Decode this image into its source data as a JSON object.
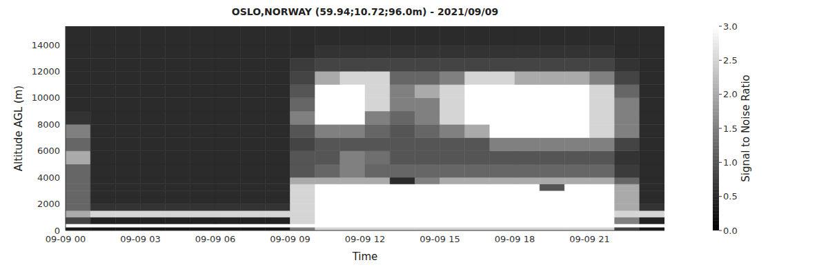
{
  "chart_data": {
    "type": "heatmap",
    "title": "OSLO,NORWAY (59.94;10.72;96.0m) - 2021/09/09",
    "x_label": "Time",
    "y_label": "Altitude AGL (m)",
    "x_bins": [
      0,
      1,
      2,
      3,
      4,
      5,
      6,
      7,
      8,
      9,
      10,
      11,
      12,
      13,
      14,
      15,
      16,
      17,
      18,
      19,
      20,
      21,
      22,
      23,
      24
    ],
    "y_bins": [
      0,
      250,
      500,
      1000,
      1500,
      2000,
      2500,
      3000,
      3500,
      4000,
      5000,
      6000,
      7000,
      8000,
      9000,
      10000,
      11000,
      12000,
      13000,
      14000,
      15400
    ],
    "cells": [
      [
        0.3,
        0.3,
        0.3,
        0.3,
        0.3,
        0.3,
        0.3,
        0.3,
        0.3,
        1.5,
        2.5,
        2.5,
        2.5,
        2.5,
        2.5,
        2.5,
        2.5,
        2.5,
        2.5,
        2.5,
        2.5,
        2.5,
        0.8,
        0.3
      ],
      [
        3,
        3,
        3,
        3,
        3,
        3,
        3,
        3,
        3,
        3,
        3,
        3,
        3,
        3,
        3,
        3,
        3,
        3,
        3,
        3,
        3,
        3,
        3,
        3
      ],
      [
        0.8,
        0.4,
        0.4,
        0.4,
        0.4,
        0.4,
        0.4,
        0.4,
        0.4,
        2.5,
        3,
        3,
        3,
        3,
        3,
        3,
        3,
        3,
        3,
        3,
        3,
        3,
        1.5,
        0.4
      ],
      [
        2,
        2.5,
        2.5,
        2.5,
        2.5,
        2.5,
        2.5,
        2.5,
        2.5,
        2.5,
        3,
        3,
        3,
        3,
        3,
        3,
        3,
        3,
        3,
        3,
        3,
        3,
        2.5,
        2.5
      ],
      [
        1.2,
        0.6,
        0.6,
        0.6,
        0.6,
        0.6,
        0.6,
        0.6,
        0.6,
        2.5,
        3,
        3,
        3,
        3,
        3,
        3,
        3,
        3,
        3,
        3,
        3,
        3,
        2,
        0.6
      ],
      [
        1.2,
        0.5,
        0.5,
        0.5,
        0.5,
        0.5,
        0.5,
        0.5,
        0.5,
        2.5,
        3,
        3,
        3,
        3,
        3,
        3,
        3,
        3,
        3,
        3,
        3,
        3,
        2,
        0.5
      ],
      [
        1.2,
        0.5,
        0.5,
        0.5,
        0.5,
        0.5,
        0.5,
        0.5,
        0.5,
        2.5,
        3,
        3,
        3,
        3,
        3,
        3,
        3,
        3,
        3,
        3,
        3,
        3,
        2,
        0.5
      ],
      [
        1.2,
        0.5,
        0.5,
        0.5,
        0.5,
        0.5,
        0.5,
        0.5,
        0.5,
        2.5,
        3,
        3,
        3,
        3,
        3,
        3,
        3,
        3,
        3,
        1,
        3,
        3,
        2,
        0.5
      ],
      [
        1.2,
        0.5,
        0.5,
        0.5,
        0.5,
        0.5,
        0.5,
        0.5,
        0.5,
        2,
        2,
        2,
        2,
        0.5,
        1.5,
        2,
        2,
        2,
        2,
        2,
        2,
        2,
        1.2,
        0.5
      ],
      [
        1.2,
        0.5,
        0.5,
        0.5,
        0.5,
        0.5,
        0.5,
        0.5,
        0.5,
        1,
        1.2,
        1.5,
        1.2,
        1.2,
        1.2,
        1.2,
        1.2,
        1.2,
        1.2,
        1.2,
        1.2,
        1.2,
        0.7,
        0.5
      ],
      [
        2,
        0.5,
        0.5,
        0.5,
        0.5,
        0.5,
        0.5,
        0.5,
        0.5,
        1,
        1,
        1.5,
        1.3,
        1,
        1,
        1,
        1,
        1,
        1,
        1,
        1,
        1,
        0.6,
        0.5
      ],
      [
        1.2,
        0.5,
        0.5,
        0.5,
        0.5,
        0.5,
        0.5,
        0.5,
        0.5,
        0.8,
        1,
        1,
        1,
        1,
        1,
        1,
        1,
        1.5,
        1.5,
        1.5,
        1.5,
        1.5,
        0.8,
        0.5
      ],
      [
        1.5,
        0.5,
        0.5,
        0.5,
        0.5,
        0.5,
        0.5,
        0.5,
        0.5,
        1,
        1.5,
        1.5,
        1.2,
        1,
        1.2,
        1.5,
        2,
        3,
        3,
        3,
        3,
        2.5,
        1.5,
        0.5
      ],
      [
        0.6,
        0.5,
        0.5,
        0.5,
        0.5,
        0.5,
        0.5,
        0.5,
        0.5,
        1.5,
        3,
        3,
        1.5,
        1.2,
        1.5,
        2.5,
        3,
        3,
        3,
        3,
        3,
        2.5,
        1.5,
        0.5
      ],
      [
        0.5,
        0.5,
        0.5,
        0.5,
        0.5,
        0.5,
        0.5,
        0.5,
        0.5,
        1.2,
        3,
        3,
        2.5,
        1.5,
        1.5,
        2.5,
        3,
        3,
        3,
        3,
        3,
        2.5,
        1.5,
        0.5
      ],
      [
        0.5,
        0.5,
        0.5,
        0.5,
        0.5,
        0.5,
        0.5,
        0.5,
        0.5,
        1,
        3,
        3,
        2.5,
        1.5,
        2,
        2.5,
        3,
        3,
        3,
        3,
        3,
        2.5,
        1.2,
        0.5
      ],
      [
        0.5,
        0.5,
        0.5,
        0.5,
        0.5,
        0.5,
        0.5,
        0.5,
        0.5,
        0.8,
        2,
        2.5,
        2.5,
        1.2,
        1.2,
        1.5,
        2.5,
        2.5,
        2,
        2,
        2,
        1.5,
        0.8,
        0.5
      ],
      [
        0.5,
        0.5,
        0.5,
        0.5,
        0.5,
        0.5,
        0.5,
        0.5,
        0.5,
        0.7,
        0.8,
        0.8,
        0.8,
        0.8,
        0.8,
        0.8,
        0.8,
        0.8,
        0.8,
        0.8,
        0.8,
        0.8,
        0.6,
        0.5
      ],
      [
        0.5,
        0.5,
        0.5,
        0.5,
        0.5,
        0.5,
        0.5,
        0.5,
        0.5,
        0.5,
        0.6,
        0.6,
        0.6,
        0.6,
        0.6,
        0.6,
        0.6,
        0.6,
        0.6,
        0.6,
        0.6,
        0.6,
        0.5,
        0.5
      ],
      [
        0.5,
        0.5,
        0.5,
        0.5,
        0.5,
        0.5,
        0.5,
        0.5,
        0.5,
        0.5,
        0.5,
        0.5,
        0.5,
        0.5,
        0.5,
        0.5,
        0.5,
        0.5,
        0.5,
        0.5,
        0.5,
        0.5,
        0.5,
        0.5
      ]
    ],
    "xlim": [
      0,
      24
    ],
    "xticks": [
      {
        "value": 0,
        "label": "09-09 00"
      },
      {
        "value": 3,
        "label": "09-09 03"
      },
      {
        "value": 6,
        "label": "09-09 06"
      },
      {
        "value": 9,
        "label": "09-09 09"
      },
      {
        "value": 12,
        "label": "09-09 12"
      },
      {
        "value": 15,
        "label": "09-09 15"
      },
      {
        "value": 18,
        "label": "09-09 18"
      },
      {
        "value": 21,
        "label": "09-09 21"
      }
    ],
    "ylim": [
      0,
      15400
    ],
    "yticks": [
      0,
      2000,
      4000,
      6000,
      8000,
      10000,
      12000,
      14000
    ],
    "grid": false,
    "colorbar": {
      "label": "Signal to Noise Ratio",
      "range": [
        0,
        3
      ],
      "colors": [
        "#000000",
        "#ffffff"
      ],
      "ticks": [
        {
          "value": 0,
          "label": "0.0"
        },
        0.5,
        {
          "value": 1,
          "label": "1.0"
        },
        1.5,
        {
          "value": 2,
          "label": "2.0"
        },
        2.5,
        {
          "value": 3,
          "label": "3.0"
        }
      ]
    }
  }
}
